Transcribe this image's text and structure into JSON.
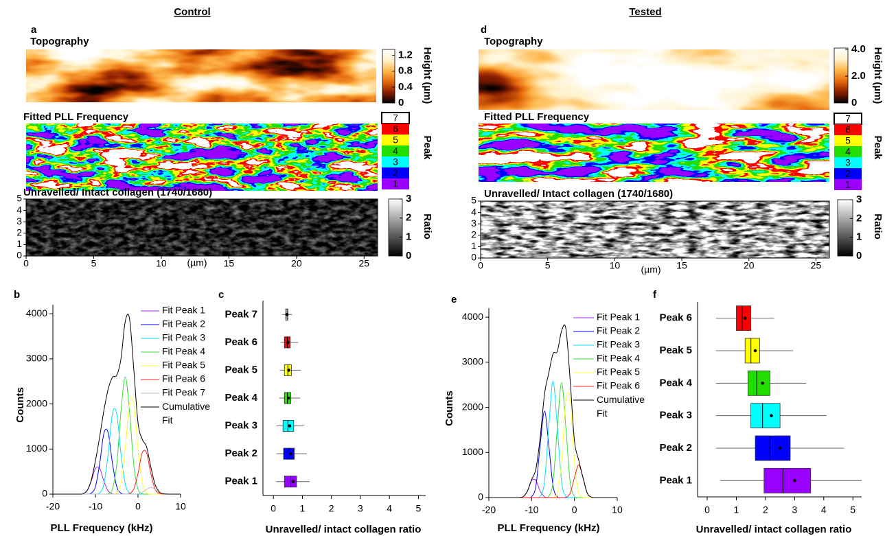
{
  "column_titles": [
    "Control",
    "Tested"
  ],
  "chart_data": [
    {
      "type": "image",
      "panel": "a",
      "title": "Topography",
      "colormap": "afmhot",
      "clim": [
        0,
        1.35
      ],
      "cticks": [
        0,
        0.4,
        0.8,
        1.2
      ],
      "colorbar_label": "Height (µm)"
    },
    {
      "type": "class-image",
      "title": "Fitted PLL Frequency",
      "legend_title": "Peak",
      "classes": [
        "7",
        "6",
        "5",
        "4",
        "3",
        "2",
        "1"
      ],
      "colors": [
        "#ffffff",
        "#ff0000",
        "#ffff00",
        "#22dd00",
        "#00ffff",
        "#0000ff",
        "#9900ff"
      ]
    },
    {
      "type": "image",
      "title": "Unravelled/ Intact collagen (1740/1680)",
      "colormap": "gray",
      "clim": [
        0,
        3
      ],
      "cticks": [
        0,
        1,
        2,
        3
      ],
      "colorbar_label": "Ratio",
      "xlim": [
        0,
        26
      ],
      "xticks": [
        0,
        5,
        10,
        15,
        20,
        25
      ],
      "xlabel": "(µm)",
      "ylim": [
        0,
        5
      ],
      "yticks": [
        0,
        1,
        2,
        3,
        4,
        5
      ]
    },
    {
      "type": "line",
      "panel": "b",
      "xlabel": "PLL Frequency (kHz)",
      "ylabel": "Counts",
      "x": [
        -13,
        -12,
        -11,
        -10,
        -9,
        -8,
        -7,
        -6,
        -5,
        -4,
        -3,
        -2,
        -1,
        0,
        1,
        2,
        3,
        4,
        5,
        6,
        7
      ],
      "xlim": [
        -20,
        10
      ],
      "xticks": [
        -20,
        -10,
        0,
        10
      ],
      "ylim": [
        0,
        4200
      ],
      "yticks": [
        0,
        1000,
        2000,
        3000,
        4000
      ],
      "series": [
        {
          "name": "Fit Peak 1",
          "color": "#a020f0",
          "values": [
            9,
            71,
            284,
            569,
            569,
            284,
            71,
            9,
            1,
            0,
            0,
            0,
            0,
            0,
            0,
            0,
            0,
            0,
            0,
            0,
            0
          ]
        },
        {
          "name": "Fit Peak 2",
          "color": "#0000ff",
          "values": [
            0,
            1,
            21,
            169,
            678,
            1357,
            1357,
            678,
            169,
            21,
            1,
            0,
            0,
            0,
            0,
            0,
            0,
            0,
            0,
            0,
            0
          ]
        },
        {
          "name": "Fit Peak 3",
          "color": "#00e0ff",
          "values": [
            0,
            0,
            0,
            2,
            27,
            222,
            893,
            1788,
            1788,
            893,
            222,
            27,
            2,
            0,
            0,
            0,
            0,
            0,
            0,
            0,
            0
          ]
        },
        {
          "name": "Fit Peak 4",
          "color": "#33dd33",
          "values": [
            0,
            0,
            0,
            0,
            0,
            0,
            10,
            114,
            647,
            1838,
            2600,
            1838,
            647,
            114,
            10,
            0,
            0,
            0,
            0,
            0,
            0
          ]
        },
        {
          "name": "Fit Peak 5",
          "color": "#ffff33",
          "values": [
            0,
            0,
            0,
            0,
            0,
            0,
            0,
            2,
            31,
            251,
            1008,
            2017,
            2017,
            1008,
            251,
            31,
            2,
            0,
            0,
            0,
            0
          ]
        },
        {
          "name": "Fit Peak 6",
          "color": "#ff2020",
          "values": [
            0,
            0,
            0,
            0,
            0,
            0,
            0,
            0,
            0,
            0,
            0,
            14,
            114,
            458,
            917,
            917,
            458,
            114,
            14,
            1,
            0
          ]
        },
        {
          "name": "Fit Peak 7",
          "color": "#bbbbbb",
          "values": [
            0,
            0,
            0,
            0,
            0,
            0,
            0,
            0,
            0,
            0,
            0,
            0,
            0,
            7,
            37,
            106,
            150,
            106,
            37,
            7,
            1
          ]
        },
        {
          "name": "Cumulative Fit",
          "color": "#000000",
          "values": [
            9,
            72,
            305,
            740,
            1274,
            1863,
            2331,
            2591,
            2636,
            3003,
            3831,
            3896,
            2780,
            1587,
            1215,
            1054,
            610,
            220,
            51,
            8,
            1
          ]
        }
      ]
    },
    {
      "type": "box",
      "panel": "c",
      "xlabel": "Unravelled/ intact collagen ratio",
      "xlim": [
        -0.36,
        5.25
      ],
      "xticks": [
        0,
        1,
        2,
        3,
        4,
        5
      ],
      "categories": [
        "Peak 7",
        "Peak 6",
        "Peak 5",
        "Peak 4",
        "Peak 3",
        "Peak 2",
        "Peak 1"
      ],
      "colors": [
        "#ffffff",
        "#ff0000",
        "#ffff00",
        "#22dd00",
        "#00ffff",
        "#0000ff",
        "#9900ff"
      ],
      "boxes": [
        {
          "whislo": 0.3,
          "q1": 0.42,
          "med": 0.47,
          "q3": 0.5,
          "whishi": 0.65,
          "mean": 0.47
        },
        {
          "whislo": 0.25,
          "q1": 0.38,
          "med": 0.48,
          "q3": 0.58,
          "whishi": 0.85,
          "mean": 0.5
        },
        {
          "whislo": 0.22,
          "q1": 0.38,
          "med": 0.5,
          "q3": 0.62,
          "whishi": 0.95,
          "mean": 0.53
        },
        {
          "whislo": 0.2,
          "q1": 0.38,
          "med": 0.48,
          "q3": 0.6,
          "whishi": 0.92,
          "mean": 0.52
        },
        {
          "whislo": 0.1,
          "q1": 0.33,
          "med": 0.5,
          "q3": 0.7,
          "whishi": 1.05,
          "mean": 0.56
        },
        {
          "whislo": 0.1,
          "q1": 0.35,
          "med": 0.55,
          "q3": 0.72,
          "whishi": 1.15,
          "mean": 0.6
        },
        {
          "whislo": 0.1,
          "q1": 0.38,
          "med": 0.6,
          "q3": 0.8,
          "whishi": 1.25,
          "mean": 0.68
        }
      ]
    },
    {
      "type": "image",
      "panel": "d",
      "title": "Topography",
      "colormap": "afmhot",
      "clim": [
        0,
        4.1
      ],
      "cticks": [
        0,
        {
          "value": 2,
          "label": "2.0"
        },
        {
          "value": 4,
          "label": "4.0"
        }
      ],
      "colorbar_label": "Height (µm)"
    },
    {
      "type": "class-image",
      "title": "Fitted PLL Frequency",
      "legend_title": "Peak",
      "classes": [
        "7",
        "6",
        "5",
        "4",
        "3",
        "2",
        "1"
      ],
      "colors": [
        "#ffffff",
        "#ff0000",
        "#ffff00",
        "#22dd00",
        "#00ffff",
        "#0000ff",
        "#9900ff"
      ]
    },
    {
      "type": "image",
      "title": "Unravelled/ Intact collagen (1740/1680)",
      "colormap": "gray",
      "clim": [
        0,
        3
      ],
      "cticks": [
        0,
        1,
        2,
        3
      ],
      "colorbar_label": "Ratio",
      "xlim": [
        0,
        26
      ],
      "xticks": [
        0,
        5,
        10,
        15,
        20,
        25
      ],
      "xlabel": "(µm)",
      "ylim": [
        0,
        5
      ],
      "yticks": [
        0,
        1,
        2,
        3,
        4,
        5
      ]
    },
    {
      "type": "line",
      "panel": "e",
      "xlabel": "PLL Frequency (kHz)",
      "ylabel": "Counts",
      "x": [
        -13,
        -12,
        -11,
        -10,
        -9,
        -8,
        -7,
        -6,
        -5,
        -4,
        -3,
        -2,
        -1,
        0,
        1,
        2,
        3,
        4,
        5,
        6,
        7
      ],
      "xlim": [
        -20,
        10
      ],
      "xticks": [
        -20,
        -10,
        0,
        10
      ],
      "ylim": [
        0,
        4200
      ],
      "yticks": [
        0,
        1000,
        2000,
        3000,
        4000
      ],
      "series": [
        {
          "name": "Fit Peak 1",
          "color": "#a020f0",
          "values": [
            1,
            19,
            140,
            379,
            379,
            140,
            19,
            1,
            0,
            0,
            0,
            0,
            0,
            0,
            0,
            0,
            0,
            0,
            0,
            0,
            0
          ]
        },
        {
          "name": "Fit Peak 2",
          "color": "#0000ff",
          "values": [
            0,
            0,
            1,
            21,
            259,
            1165,
            1920,
            1165,
            259,
            21,
            1,
            0,
            0,
            0,
            0,
            0,
            0,
            0,
            0,
            0,
            0
          ]
        },
        {
          "name": "Fit Peak 3",
          "color": "#00e0ff",
          "values": [
            0,
            0,
            0,
            0,
            1,
            28,
            348,
            1566,
            2580,
            1566,
            348,
            28,
            1,
            0,
            0,
            0,
            0,
            0,
            0,
            0,
            0
          ]
        },
        {
          "name": "Fit Peak 4",
          "color": "#33dd33",
          "values": [
            0,
            0,
            0,
            0,
            0,
            0,
            1,
            28,
            344,
            1548,
            2550,
            1548,
            344,
            28,
            1,
            0,
            0,
            0,
            0,
            0,
            0
          ]
        },
        {
          "name": "Fit Peak 5",
          "color": "#ffff33",
          "values": [
            0,
            0,
            0,
            0,
            0,
            0,
            0,
            0,
            5,
            108,
            796,
            2161,
            2161,
            796,
            108,
            5,
            0,
            0,
            0,
            0,
            0
          ]
        },
        {
          "name": "Fit Peak 6",
          "color": "#ff2020",
          "values": [
            0,
            0,
            0,
            0,
            0,
            0,
            0,
            0,
            0,
            0,
            0,
            8,
            97,
            437,
            720,
            437,
            97,
            8,
            0,
            0,
            0
          ]
        },
        {
          "name": "Cumulative Fit",
          "color": "#000000",
          "values": [
            1,
            19,
            141,
            400,
            639,
            1333,
            2288,
            2760,
            3188,
            3243,
            3695,
            3745,
            2603,
            1261,
            829,
            442,
            97,
            8,
            0,
            0,
            0
          ]
        }
      ]
    },
    {
      "type": "box",
      "panel": "f",
      "xlabel": "Unravelled/ intact collagen ratio",
      "xlim": [
        -0.33,
        5.3
      ],
      "xticks": [
        0,
        1,
        2,
        3,
        4,
        5
      ],
      "categories": [
        "Peak 6",
        "Peak 5",
        "Peak 4",
        "Peak 3",
        "Peak 2",
        "Peak 1"
      ],
      "colors": [
        "#ff0000",
        "#ffff00",
        "#22dd00",
        "#00ffff",
        "#0000ff",
        "#9900ff"
      ],
      "boxes": [
        {
          "whislo": 0.3,
          "q1": 1.0,
          "med": 1.2,
          "q3": 1.5,
          "whishi": 2.3,
          "mean": 1.3
        },
        {
          "whislo": 0.3,
          "q1": 1.3,
          "med": 1.5,
          "q3": 1.8,
          "whishi": 2.95,
          "mean": 1.65
        },
        {
          "whislo": 0.3,
          "q1": 1.4,
          "med": 1.7,
          "q3": 2.15,
          "whishi": 3.4,
          "mean": 1.9
        },
        {
          "whislo": 0.3,
          "q1": 1.5,
          "med": 1.9,
          "q3": 2.5,
          "whishi": 4.1,
          "mean": 2.2
        },
        {
          "whislo": 0.3,
          "q1": 1.65,
          "med": 2.15,
          "q3": 2.85,
          "whishi": 4.7,
          "mean": 2.5
        },
        {
          "whislo": 0.45,
          "q1": 1.95,
          "med": 2.6,
          "q3": 3.55,
          "whishi": 5.3,
          "mean": 3.0
        }
      ]
    }
  ]
}
